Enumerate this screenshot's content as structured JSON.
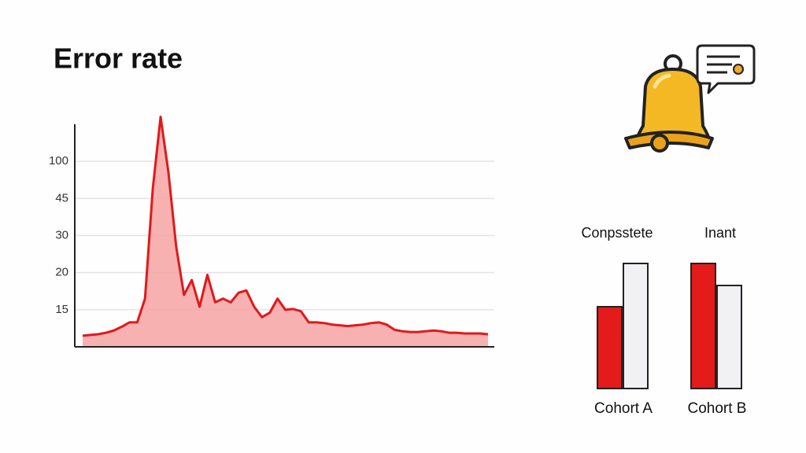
{
  "title": "Error rate",
  "chart_data": [
    {
      "type": "area",
      "color": "#e0191b",
      "fill": "#f7a3a3",
      "scale": "piecewise",
      "ylim": [
        10,
        160
      ],
      "yticks": [
        15,
        20,
        30,
        45,
        100
      ],
      "grid": true,
      "values": [
        11.5,
        11.6,
        11.7,
        11.9,
        12.2,
        12.7,
        13.3,
        13.3,
        16.5,
        60,
        172,
        84,
        27,
        17,
        19,
        15.4,
        19.7,
        16,
        16.5,
        16,
        17.3,
        17.6,
        15.4,
        14,
        14.6,
        16.5,
        15,
        15.1,
        14.8,
        13.3,
        13.3,
        13.2,
        13,
        12.9,
        12.8,
        12.9,
        13,
        13.2,
        13.3,
        13,
        12.3,
        12.1,
        12,
        12,
        12.1,
        12.2,
        12.1,
        11.9,
        11.9,
        11.8,
        11.8,
        11.8,
        11.7
      ]
    },
    {
      "type": "bar",
      "group_labels": [
        "Conpsstete",
        "Inant"
      ],
      "categories": [
        "Cohort A",
        "Cohort B"
      ],
      "ylim": [
        0,
        160
      ],
      "series": [
        {
          "color": "#e31b1b",
          "values": [
            104,
            159
          ]
        },
        {
          "color": "#f1f1f4",
          "values": [
            159,
            131
          ]
        }
      ]
    }
  ]
}
